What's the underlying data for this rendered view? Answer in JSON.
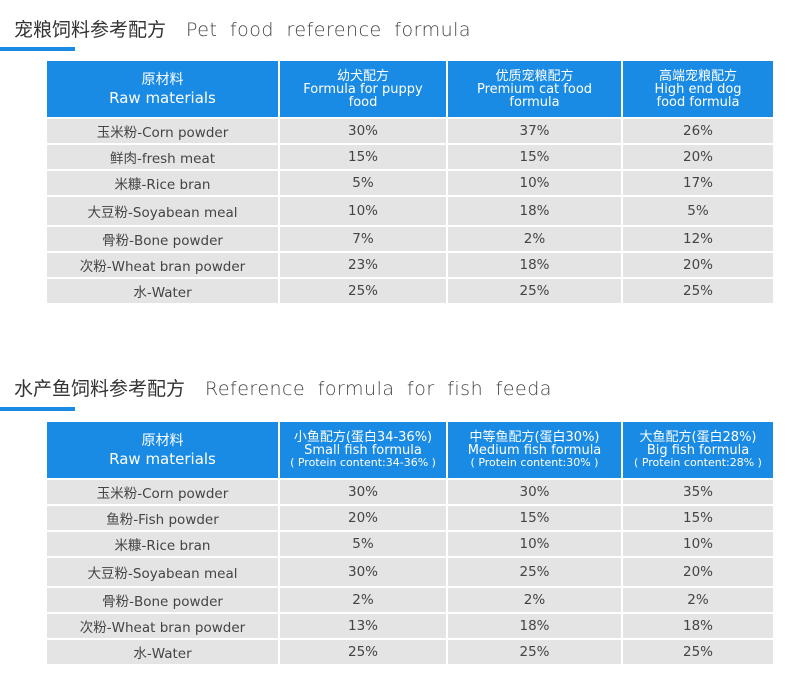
{
  "pet": {
    "title_cn": "宠粮饲料参考配方",
    "title_en": "Pet food reference formula",
    "headers": [
      {
        "l1": "原材料",
        "l2": "Raw materials"
      },
      {
        "l1": "幼犬配方",
        "l2": "Formula for puppy",
        "l3": "food"
      },
      {
        "l1": "优质宠粮配方",
        "l2": "Premium cat food",
        "l3": "formula"
      },
      {
        "l1": "高端宠粮配方",
        "l2": "High end dog",
        "l3": "food formula"
      }
    ],
    "rows": [
      [
        "玉米粉-Corn powder",
        "30%",
        "37%",
        "26%"
      ],
      [
        "鲜肉-fresh meat",
        "15%",
        "15%",
        "20%"
      ],
      [
        "米糠-Rice bran",
        "5%",
        "10%",
        "17%"
      ],
      [
        "大豆粉-Soyabean meal",
        "10%",
        "18%",
        "5%"
      ],
      [
        "骨粉-Bone powder",
        "7%",
        "2%",
        "12%"
      ],
      [
        "次粉-Wheat bran powder",
        "23%",
        "18%",
        "20%"
      ],
      [
        "水-Water",
        "25%",
        "25%",
        "25%"
      ]
    ]
  },
  "fish": {
    "title_cn": "水产鱼饲料参考配方",
    "title_en": "Reference formula for fish feeda",
    "headers": [
      {
        "l1": "原材料",
        "l2": "Raw materials"
      },
      {
        "l1": "小鱼配方(蛋白34-36%)",
        "l2": "Small fish formula",
        "l3": "( Protein content:34-36% )"
      },
      {
        "l1": "中等鱼配方(蛋白30%)",
        "l2": "Medium fish formula",
        "l3": "( Protein content:30% )"
      },
      {
        "l1": "大鱼配方(蛋白28%)",
        "l2": "Big fish formula",
        "l3": "( Protein content:28% )"
      }
    ],
    "rows": [
      [
        "玉米粉-Corn powder",
        "30%",
        "30%",
        "35%"
      ],
      [
        "鱼粉-Fish powder",
        "20%",
        "15%",
        "15%"
      ],
      [
        "米糠-Rice bran",
        "5%",
        "10%",
        "10%"
      ],
      [
        "大豆粉-Soyabean meal",
        "30%",
        "25%",
        "20%"
      ],
      [
        "骨粉-Bone powder",
        "2%",
        "2%",
        "2%"
      ],
      [
        "次粉-Wheat bran powder",
        "13%",
        "18%",
        "18%"
      ],
      [
        "水-Water",
        "25%",
        "25%",
        "25%"
      ]
    ]
  },
  "colors": {
    "accent": "#1a8be5",
    "cell_bg": "#e4e4e4"
  }
}
